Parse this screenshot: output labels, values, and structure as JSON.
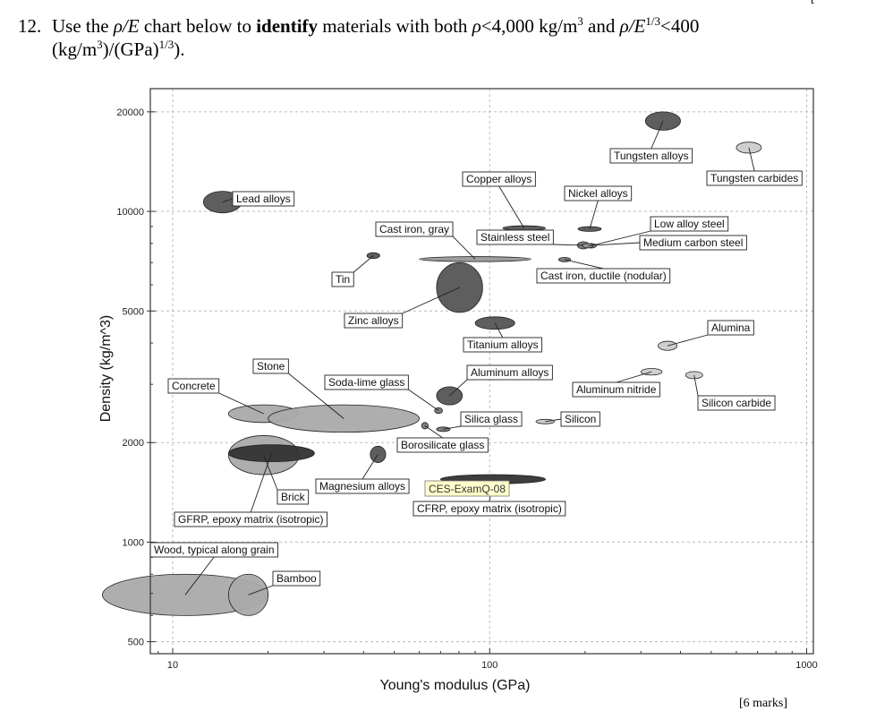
{
  "question": {
    "number": "12.",
    "intro": "Use the",
    "rho_over_e": "ρ/E",
    "chart_below_to": "chart below to",
    "verb": "identify",
    "materials_with_both": "materials with both",
    "rho": "ρ",
    "lt_4000": "<4,000 kg/m",
    "exp3": "3",
    "and": "and",
    "rho_over_e13": "ρ/E",
    "exp13": "1/3",
    "lt_400": "<400",
    "units_line": "(kg/m",
    "units_exp3": "3",
    "units_mid": ")/(GPa)",
    "units_exp13": "1/3",
    "units_end": ")."
  },
  "marks": {
    "top_right": "[",
    "bottom_right": "[6 marks]"
  },
  "chart_data": {
    "type": "scatter",
    "title": "",
    "xlabel": "Young's modulus (GPa)",
    "ylabel": "Density (kg/m^3)",
    "x_scale": "log",
    "y_scale": "log",
    "xlim": [
      8.5,
      1050
    ],
    "ylim": [
      460,
      23500
    ],
    "x_ticks": [
      10,
      100,
      1000
    ],
    "x_tick_labels": [
      "10",
      "100",
      "1000"
    ],
    "y_ticks": [
      500,
      1000,
      2000,
      5000,
      10000,
      20000
    ],
    "y_tick_labels": [
      "500",
      "1000",
      "2000",
      "5000",
      "10000",
      "20000"
    ],
    "grid": true,
    "watermark": "CES-ExamQ-08",
    "materials": [
      {
        "name": "Tungsten alloys",
        "e_min": 310,
        "e_max": 400,
        "rho_min": 17600,
        "rho_max": 20000,
        "color": "#555555"
      },
      {
        "name": "Tungsten carbides",
        "e_min": 600,
        "e_max": 720,
        "rho_min": 15000,
        "rho_max": 16200,
        "color": "#cccccc"
      },
      {
        "name": "Lead alloys",
        "e_min": 12.5,
        "e_max": 16.5,
        "rho_min": 9900,
        "rho_max": 11500,
        "color": "#555555"
      },
      {
        "name": "Copper alloys",
        "e_min": 110,
        "e_max": 150,
        "rho_min": 8750,
        "rho_max": 9050,
        "color": "#555555"
      },
      {
        "name": "Nickel alloys",
        "e_min": 190,
        "e_max": 225,
        "rho_min": 8700,
        "rho_max": 9000,
        "color": "#555555"
      },
      {
        "name": "Stainless steel",
        "e_min": 189,
        "e_max": 206,
        "rho_min": 7700,
        "rho_max": 8100,
        "color": "#777777"
      },
      {
        "name": "Low alloy steel",
        "e_min": 201,
        "e_max": 217,
        "rho_min": 7750,
        "rho_max": 8000,
        "color": "#999999"
      },
      {
        "name": "Medium carbon steel",
        "e_min": 196,
        "e_max": 212,
        "rho_min": 7780,
        "rho_max": 7980,
        "color": "#999999"
      },
      {
        "name": "Cast iron, gray",
        "e_min": 60,
        "e_max": 135,
        "rho_min": 7050,
        "rho_max": 7300,
        "color": "#999999"
      },
      {
        "name": "Cast iron, ductile (nodular)",
        "e_min": 165,
        "e_max": 180,
        "rho_min": 7050,
        "rho_max": 7250,
        "color": "#777777"
      },
      {
        "name": "Tin",
        "e_min": 41,
        "e_max": 45,
        "rho_min": 7200,
        "rho_max": 7500,
        "color": "#555555"
      },
      {
        "name": "Zinc alloys",
        "e_min": 68,
        "e_max": 95,
        "rho_min": 4950,
        "rho_max": 7000,
        "color": "#555555"
      },
      {
        "name": "Titanium alloys",
        "e_min": 90,
        "e_max": 120,
        "rho_min": 4400,
        "rho_max": 4800,
        "color": "#555555"
      },
      {
        "name": "Alumina",
        "e_min": 340,
        "e_max": 390,
        "rho_min": 3800,
        "rho_max": 4050,
        "color": "#cccccc"
      },
      {
        "name": "Aluminum nitride",
        "e_min": 300,
        "e_max": 350,
        "rho_min": 3200,
        "rho_max": 3350,
        "color": "#cccccc"
      },
      {
        "name": "Silicon carbide",
        "e_min": 415,
        "e_max": 470,
        "rho_min": 3120,
        "rho_max": 3280,
        "color": "#cccccc"
      },
      {
        "name": "Aluminum alloys",
        "e_min": 68,
        "e_max": 82,
        "rho_min": 2600,
        "rho_max": 2950,
        "color": "#555555"
      },
      {
        "name": "Soda-lime glass",
        "e_min": 67,
        "e_max": 71,
        "rho_min": 2450,
        "rho_max": 2550,
        "color": "#777777"
      },
      {
        "name": "Silica glass",
        "e_min": 68,
        "e_max": 75,
        "rho_min": 2170,
        "rho_max": 2220,
        "color": "#777777"
      },
      {
        "name": "Borosilicate glass",
        "e_min": 61,
        "e_max": 64,
        "rho_min": 2200,
        "rho_max": 2300,
        "color": "#777777"
      },
      {
        "name": "Silicon",
        "e_min": 140,
        "e_max": 160,
        "rho_min": 2280,
        "rho_max": 2350,
        "color": "#cccccc"
      },
      {
        "name": "Concrete",
        "e_min": 15,
        "e_max": 25,
        "rho_min": 2300,
        "rho_max": 2600,
        "color": "#aaaaaa"
      },
      {
        "name": "Stone",
        "e_min": 20,
        "e_max": 60,
        "rho_min": 2150,
        "rho_max": 2600,
        "color": "#aaaaaa"
      },
      {
        "name": "Brick",
        "e_min": 15,
        "e_max": 25,
        "rho_min": 1600,
        "rho_max": 2100,
        "color": "#aaaaaa"
      },
      {
        "name": "GFRP, epoxy matrix (isotropic)",
        "e_min": 15,
        "e_max": 28,
        "rho_min": 1750,
        "rho_max": 1970,
        "color": "#333333"
      },
      {
        "name": "Magnesium alloys",
        "e_min": 42,
        "e_max": 47,
        "rho_min": 1740,
        "rho_max": 1950,
        "color": "#555555"
      },
      {
        "name": "CFRP, epoxy matrix (isotropic)",
        "e_min": 70,
        "e_max": 150,
        "rho_min": 1500,
        "rho_max": 1600,
        "color": "#333333"
      },
      {
        "name": "Wood, typical along grain",
        "e_min": 6,
        "e_max": 20,
        "rho_min": 600,
        "rho_max": 800,
        "color": "#aaaaaa"
      },
      {
        "name": "Bamboo",
        "e_min": 15,
        "e_max": 20,
        "rho_min": 600,
        "rho_max": 800,
        "color": "#aaaaaa"
      }
    ]
  }
}
